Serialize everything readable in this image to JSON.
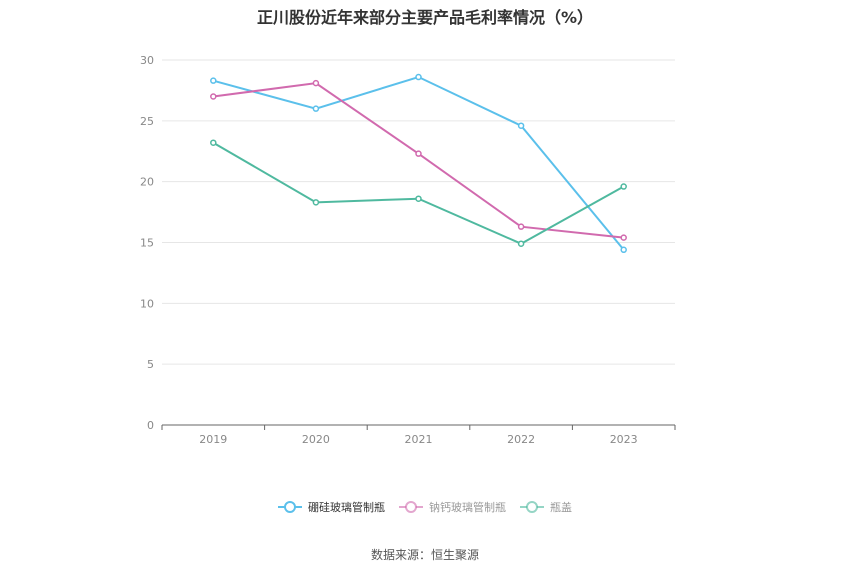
{
  "title": "正川股份近年来部分主要产品毛利率情况（%）",
  "source": "数据来源：恒生聚源",
  "chart_data": {
    "type": "line",
    "x": [
      "2019",
      "2020",
      "2021",
      "2022",
      "2023"
    ],
    "ylim": [
      0,
      30
    ],
    "yticks": [
      0,
      5,
      10,
      15,
      20,
      25,
      30
    ],
    "grid": true,
    "legend_position": "bottom",
    "series": [
      {
        "name": "硼硅玻璃管制瓶",
        "color": "#5bc0eb",
        "values": [
          28.3,
          26.0,
          28.6,
          24.6,
          14.4
        ]
      },
      {
        "name": "钠钙玻璃管制瓶",
        "color": "#d16aae",
        "values": [
          27.0,
          28.1,
          22.3,
          16.3,
          15.4
        ]
      },
      {
        "name": "瓶盖",
        "color": "#4fb99f",
        "values": [
          23.2,
          18.3,
          18.6,
          14.9,
          19.6
        ]
      }
    ]
  }
}
